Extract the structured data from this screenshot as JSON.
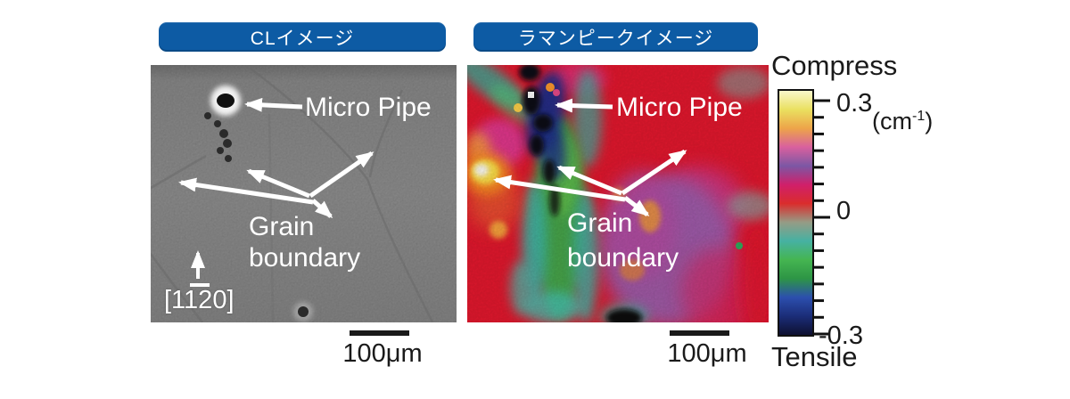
{
  "figure": {
    "left_panel": {
      "title": "CLイメージ",
      "labels": {
        "micro_pipe": "Micro Pipe",
        "grain_line1": "Grain",
        "grain_line2": "boundary",
        "direction_pre": "[11",
        "direction_bar": "2",
        "direction_post": "0]"
      },
      "scale_bar": "100μm"
    },
    "right_panel": {
      "title": "ラマンピークイメージ",
      "labels": {
        "micro_pipe": "Micro Pipe",
        "grain_line1": "Grain",
        "grain_line2": "boundary"
      },
      "scale_bar": "100μm"
    },
    "colorbar": {
      "compress_label": "Compress",
      "tensile_label": "Tensile",
      "max_label": "0.3",
      "zero_label": "0",
      "min_label": "-0.3",
      "unit_prefix": "(cm",
      "unit_sup": "-1",
      "unit_suffix": ")",
      "range_min": -0.3,
      "range_max": 0.3,
      "unit": "cm-1",
      "tick_count": 15,
      "major_tick_indexes": [
        0,
        7,
        14
      ],
      "gradient_top_to_bottom": [
        "#f9f7cb",
        "#eae060",
        "#eda449",
        "#d9609e",
        "#7c57a4",
        "#d01f6a",
        "#da2c2c",
        "#969b85",
        "#46b1a2",
        "#45b551",
        "#2d9545",
        "#2c4fae",
        "#1b2d78",
        "#0e1030"
      ]
    },
    "colors": {
      "header_pill_bg": "#0d5ba4",
      "header_pill_text": "#ffffff",
      "annotation_text": "#ffffff",
      "figure_text": "#1a1a1a",
      "cl_image_base": "#8d8d8d",
      "raman_image_base": "#e5182e"
    }
  }
}
